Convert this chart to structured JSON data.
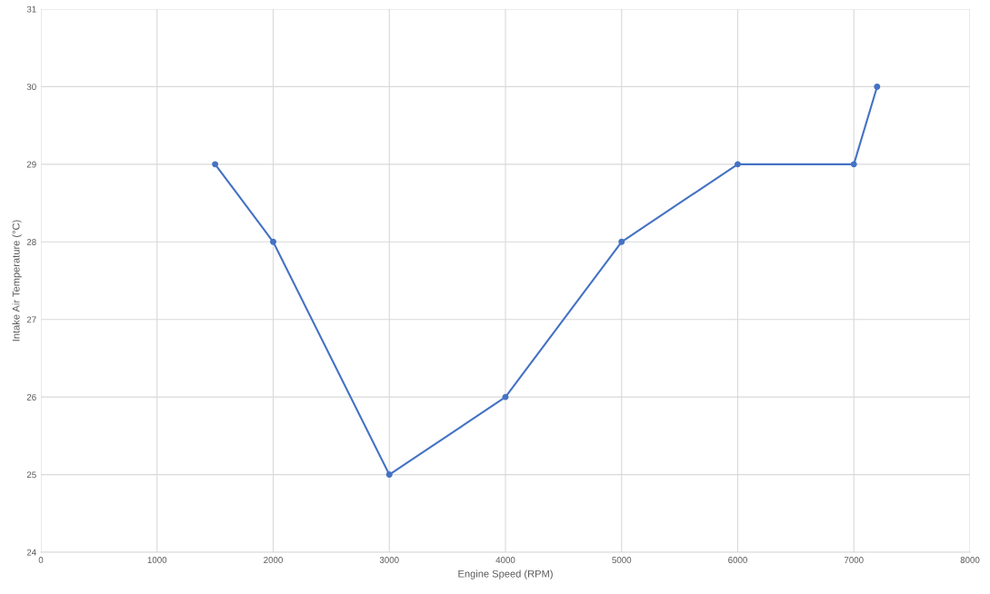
{
  "chart_data": {
    "type": "line",
    "xlabel": "Engine Speed (RPM)",
    "ylabel": "Intake Air Temperature (°C)",
    "x": [
      1500,
      2000,
      3000,
      4000,
      5000,
      6000,
      7000,
      7200
    ],
    "series": [
      {
        "color": "#4472c4",
        "values": [
          29,
          28,
          25,
          26,
          28,
          29,
          29,
          30
        ]
      }
    ],
    "xlim": [
      0,
      8000
    ],
    "xticks": [
      0,
      1000,
      2000,
      3000,
      4000,
      5000,
      6000,
      7000,
      8000
    ],
    "ylim": [
      24,
      31
    ],
    "yticks": [
      24,
      25,
      26,
      27,
      28,
      29,
      30,
      31
    ],
    "grid": true,
    "marker": "circle",
    "line_style": "solid"
  }
}
